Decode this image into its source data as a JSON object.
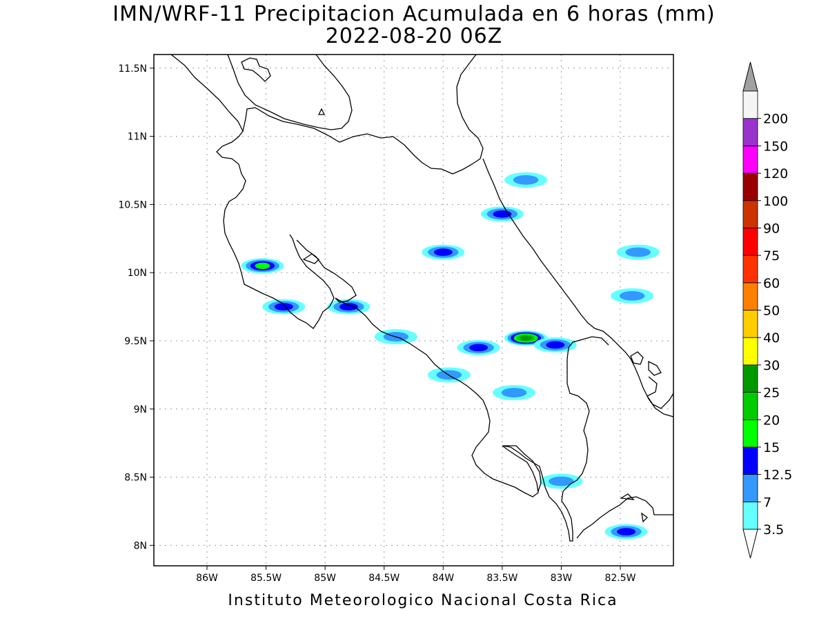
{
  "header": {
    "title": "IMN/WRF-11 Precipitacion Acumulada en 6 horas (mm)",
    "subtitle": "2022-08-20 06Z"
  },
  "footer": {
    "credit": "Instituto Meteorologico Nacional Costa Rica"
  },
  "map": {
    "lon_range": [
      -86.45,
      -82.05
    ],
    "lat_range": [
      7.85,
      11.6
    ],
    "x_ticks": [
      {
        "lon": -86.0,
        "label": "86W"
      },
      {
        "lon": -85.5,
        "label": "85.5W"
      },
      {
        "lon": -85.0,
        "label": "85W"
      },
      {
        "lon": -84.5,
        "label": "84.5W"
      },
      {
        "lon": -84.0,
        "label": "84W"
      },
      {
        "lon": -83.5,
        "label": "83.5W"
      },
      {
        "lon": -83.0,
        "label": "83W"
      },
      {
        "lon": -82.5,
        "label": "82.5W"
      }
    ],
    "y_ticks": [
      {
        "lat": 8.0,
        "label": "8N"
      },
      {
        "lat": 8.5,
        "label": "8.5N"
      },
      {
        "lat": 9.0,
        "label": "9N"
      },
      {
        "lat": 9.5,
        "label": "9.5N"
      },
      {
        "lat": 10.0,
        "label": "10N"
      },
      {
        "lat": 10.5,
        "label": "10.5N"
      },
      {
        "lat": 11.0,
        "label": "11N"
      },
      {
        "lat": 11.5,
        "label": "11.5N"
      }
    ],
    "grid": true,
    "coastline_color": "#000000"
  },
  "colorbar": {
    "levels": [
      "3.5",
      "7",
      "12.5",
      "15",
      "20",
      "25",
      "30",
      "40",
      "50",
      "60",
      "75",
      "90",
      "100",
      "120",
      "150",
      "200"
    ],
    "colors": [
      "#66ffff",
      "#3399ff",
      "#0000ff",
      "#00ff00",
      "#00cc00",
      "#009900",
      "#ffff00",
      "#ffcc00",
      "#ff8000",
      "#ff3300",
      "#ff0000",
      "#cc3300",
      "#990000",
      "#ff00ff",
      "#9933cc",
      "#f5f5f5"
    ],
    "over_color": "#a0a0a0",
    "under_color": "#ffffff"
  },
  "precip_cells": [
    {
      "lon": -85.53,
      "lat": 10.05,
      "level": 3
    },
    {
      "lon": -85.35,
      "lat": 9.75,
      "level": 2
    },
    {
      "lon": -84.8,
      "lat": 9.75,
      "level": 2
    },
    {
      "lon": -84.4,
      "lat": 9.53,
      "level": 1
    },
    {
      "lon": -84.0,
      "lat": 10.15,
      "level": 2
    },
    {
      "lon": -83.5,
      "lat": 10.43,
      "level": 2
    },
    {
      "lon": -83.3,
      "lat": 10.68,
      "level": 1
    },
    {
      "lon": -83.3,
      "lat": 9.52,
      "level": 5
    },
    {
      "lon": -83.05,
      "lat": 9.47,
      "level": 2
    },
    {
      "lon": -83.7,
      "lat": 9.45,
      "level": 2
    },
    {
      "lon": -83.95,
      "lat": 9.25,
      "level": 1
    },
    {
      "lon": -83.4,
      "lat": 9.12,
      "level": 1
    },
    {
      "lon": -82.45,
      "lat": 8.1,
      "level": 2
    },
    {
      "lon": -83.0,
      "lat": 8.47,
      "level": 1
    },
    {
      "lon": -82.4,
      "lat": 9.83,
      "level": 1
    },
    {
      "lon": -82.35,
      "lat": 10.15,
      "level": 1
    }
  ]
}
